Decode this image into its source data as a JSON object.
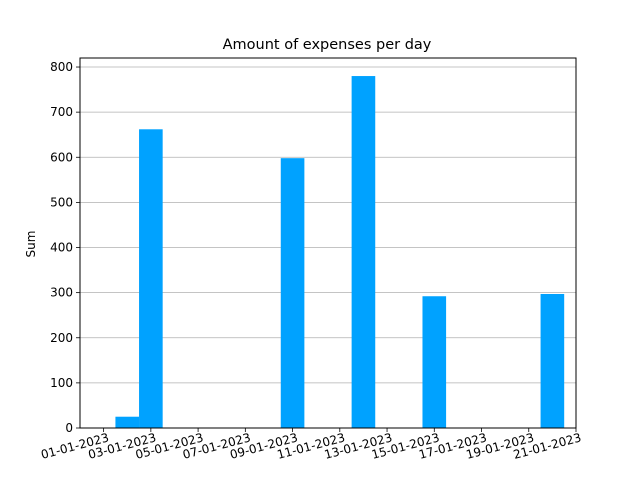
{
  "chart_data": {
    "type": "bar",
    "title": "Amount of expenses per day",
    "xlabel": "",
    "ylabel": "Sum",
    "x": [
      "02-01-2023",
      "03-01-2023",
      "09-01-2023",
      "12-01-2023",
      "15-01-2023",
      "20-01-2023"
    ],
    "values": [
      25,
      662,
      598,
      780,
      292,
      297
    ],
    "ylim": [
      0,
      820
    ],
    "xlim": [
      "31-12-2022",
      "21-01-2023"
    ],
    "yticks": [
      0,
      100,
      200,
      300,
      400,
      500,
      600,
      700,
      800
    ],
    "xticks": [
      "01-01-2023",
      "03-01-2023",
      "05-01-2023",
      "07-01-2023",
      "09-01-2023",
      "11-01-2023",
      "13-01-2023",
      "15-01-2023",
      "17-01-2023",
      "19-01-2023",
      "21-01-2023"
    ],
    "grid": "y-major",
    "bar_color": "#00a2ff"
  }
}
